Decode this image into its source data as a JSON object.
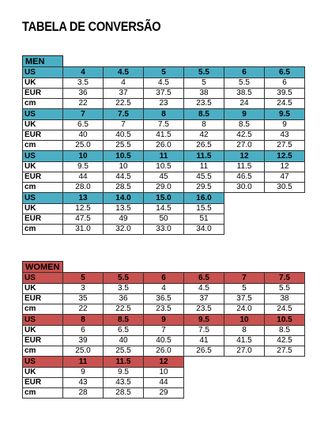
{
  "title": "TABELA DE CONVERSÃO",
  "men": {
    "label": "MEN",
    "blocks": [
      {
        "US": [
          "4",
          "4.5",
          "5",
          "5.5",
          "6",
          "6.5"
        ],
        "UK": [
          "3.5",
          "4",
          "4.5",
          "5",
          "5.5",
          "6"
        ],
        "EUR": [
          "36",
          "37",
          "37.5",
          "38",
          "38.5",
          "39.5"
        ],
        "cm": [
          "22",
          "22.5",
          "23",
          "23.5",
          "24",
          "24.5"
        ]
      },
      {
        "US": [
          "7",
          "7.5",
          "8",
          "8.5",
          "9",
          "9.5"
        ],
        "UK": [
          "6.5",
          "7",
          "7.5",
          "8",
          "8.5",
          "9"
        ],
        "EUR": [
          "40",
          "40.5",
          "41.5",
          "42",
          "42.5",
          "43"
        ],
        "cm": [
          "25.0",
          "25.5",
          "26.0",
          "26.5",
          "27.0",
          "27.5"
        ]
      },
      {
        "US": [
          "10",
          "10.5",
          "11",
          "11.5",
          "12",
          "12.5"
        ],
        "UK": [
          "9.5",
          "10",
          "10.5",
          "11",
          "11.5",
          "12"
        ],
        "EUR": [
          "44",
          "44.5",
          "45",
          "45.5",
          "46.5",
          "47"
        ],
        "cm": [
          "28.0",
          "28.5",
          "29.0",
          "29.5",
          "30.0",
          "30.5"
        ]
      },
      {
        "US": [
          "13",
          "14.0",
          "15.0",
          "16.0"
        ],
        "UK": [
          "12.5",
          "13.5",
          "14.5",
          "15.5"
        ],
        "EUR": [
          "47.5",
          "49",
          "50",
          "51"
        ],
        "cm": [
          "31.0",
          "32.0",
          "33.0",
          "34.0"
        ]
      }
    ]
  },
  "women": {
    "label": "WOMEN",
    "blocks": [
      {
        "US": [
          "5",
          "5.5",
          "6",
          "6.5",
          "7",
          "7.5"
        ],
        "UK": [
          "3",
          "3.5",
          "4",
          "4.5",
          "5",
          "5.5"
        ],
        "EUR": [
          "35",
          "36",
          "36.5",
          "37",
          "37.5",
          "38"
        ],
        "cm": [
          "22",
          "22.5",
          "23.5",
          "23.5",
          "24.0",
          "24.5"
        ]
      },
      {
        "US": [
          "8",
          "8.5",
          "9",
          "9.5",
          "10",
          "10.5"
        ],
        "UK": [
          "6",
          "6.5",
          "7",
          "7.5",
          "8",
          "8.5"
        ],
        "EUR": [
          "39",
          "40",
          "40.5",
          "41",
          "41.5",
          "42.5"
        ],
        "cm": [
          "25.0",
          "25.5",
          "26.0",
          "26.5",
          "27.0",
          "27.5"
        ]
      },
      {
        "US": [
          "11",
          "11.5",
          "12"
        ],
        "UK": [
          "9",
          "9.5",
          "10"
        ],
        "EUR": [
          "43",
          "43.5",
          "44"
        ],
        "cm": [
          "28",
          "28.5",
          "29"
        ]
      }
    ]
  },
  "row_labels": [
    "US",
    "UK",
    "EUR",
    "cm"
  ]
}
